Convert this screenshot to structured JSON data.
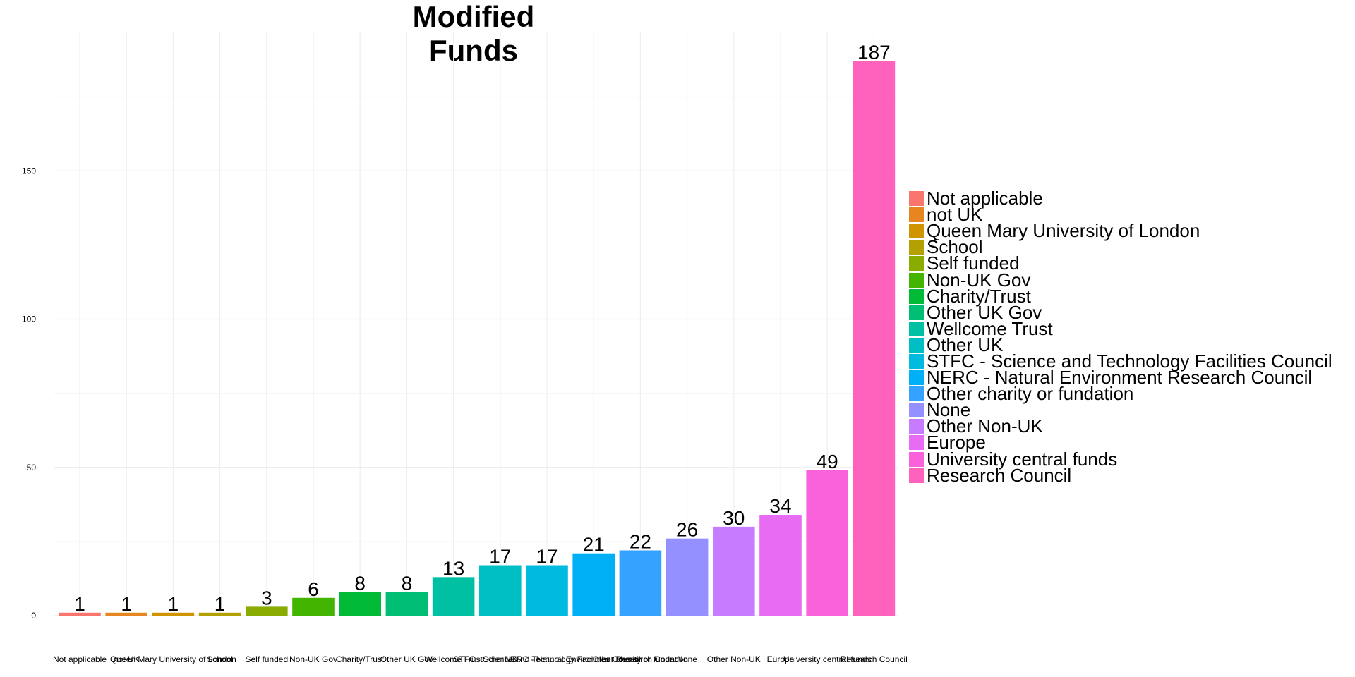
{
  "chart_data": {
    "type": "bar",
    "title": "Modified Funds",
    "xlabel": "",
    "ylabel": "",
    "ylim": [
      0,
      195
    ],
    "yticks": [
      0,
      50,
      100,
      150
    ],
    "grid": true,
    "legend_position": "right",
    "categories": [
      "Not applicable",
      "not UK",
      "Queen Mary University of London",
      "School",
      "Self funded",
      "Non-UK Gov",
      "Charity/Trust",
      "Other UK Gov",
      "Wellcome Trust",
      "Other UK",
      "STFC - Science and Technology Facilities Council",
      "NERC - Natural Environment Research Council",
      "Other charity or fundation",
      "None",
      "Other Non-UK",
      "Europe",
      "University central funds",
      "Research Council"
    ],
    "values": [
      1,
      1,
      1,
      1,
      3,
      6,
      8,
      8,
      13,
      17,
      17,
      21,
      22,
      26,
      30,
      34,
      49,
      187
    ],
    "colors": [
      "#F8766D",
      "#E7851E",
      "#D09400",
      "#B2A100",
      "#8AAB00",
      "#43B500",
      "#00BA38",
      "#00BF74",
      "#00C0A3",
      "#00BFC4",
      "#00BAE0",
      "#00B0F6",
      "#35A2FF",
      "#9590FF",
      "#C77CFF",
      "#E76BF3",
      "#FA62DB",
      "#FF62BC"
    ]
  }
}
